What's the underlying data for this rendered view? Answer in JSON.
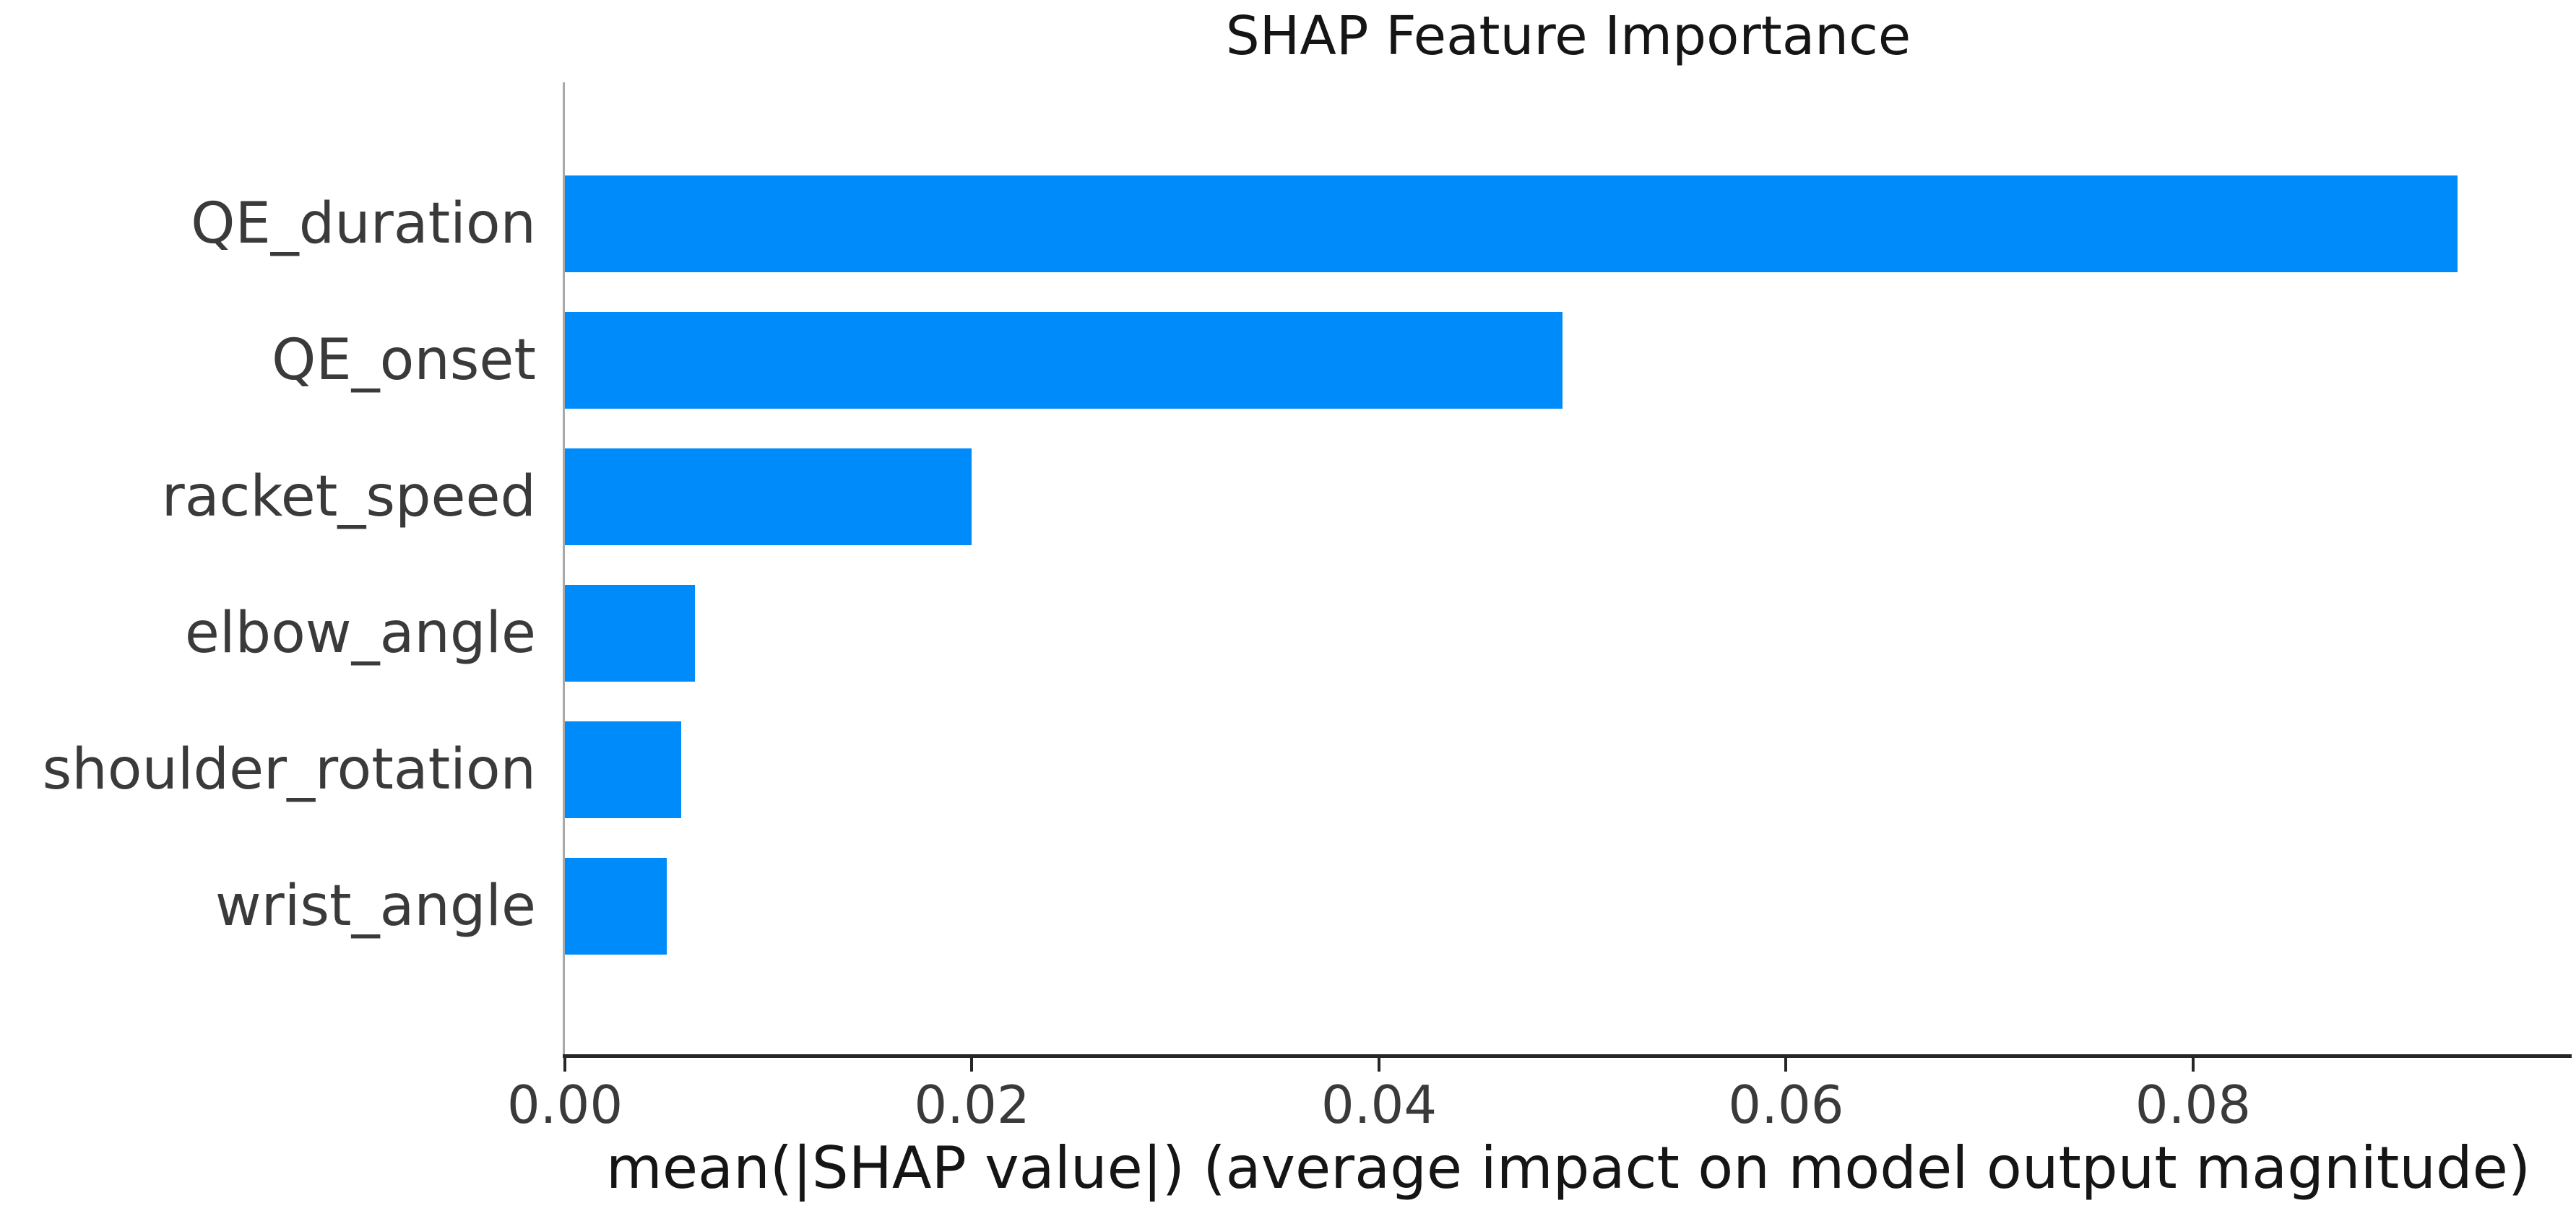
{
  "chart_data": {
    "type": "bar",
    "orientation": "horizontal",
    "title": "SHAP Feature Importance",
    "xlabel": "mean(|SHAP value|) (average impact on model output magnitude)",
    "ylabel": "",
    "categories": [
      "QE_duration",
      "QE_onset",
      "racket_speed",
      "elbow_angle",
      "shoulder_rotation",
      "wrist_angle"
    ],
    "values": [
      0.093,
      0.049,
      0.02,
      0.0064,
      0.0057,
      0.005
    ],
    "xlim": [
      0,
      0.0986
    ],
    "xticks": [
      0,
      0.02,
      0.04,
      0.06,
      0.08
    ],
    "xtick_labels": [
      "0.00",
      "0.02",
      "0.04",
      "0.06",
      "0.08"
    ],
    "grid": false,
    "legend": null
  },
  "colors": {
    "bar": "#008bfb",
    "text": "#1f1f1f",
    "left_spine": "#a8a8a8",
    "bottom_spine": "#262626",
    "background": "#ffffff"
  }
}
